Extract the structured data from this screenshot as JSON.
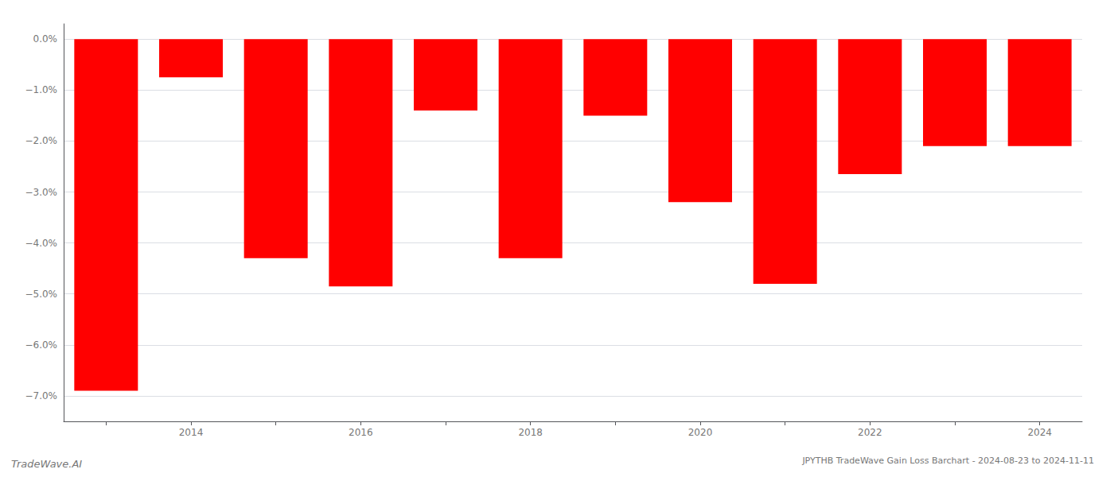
{
  "chart_data": {
    "type": "bar",
    "title": "JPYTHB TradeWave Gain Loss Barchart - 2024-08-23 to 2024-11-11",
    "annotations": [
      "TradeWave.AI"
    ],
    "categories": [
      null,
      "2014",
      null,
      "2016",
      null,
      "2018",
      null,
      "2020",
      null,
      "2022",
      null,
      "2024"
    ],
    "values": [
      -6.9,
      -0.75,
      -4.3,
      -4.85,
      -1.4,
      -4.3,
      -1.5,
      -3.2,
      -4.8,
      -2.65,
      -2.1,
      -2.1
    ],
    "color": "#ff0000",
    "ylim": [
      -7.5,
      0.3
    ],
    "yticks": [
      {
        "value": 0.0,
        "label": "0.0%"
      },
      {
        "value": -1.0,
        "label": "−1.0%"
      },
      {
        "value": -2.0,
        "label": "−2.0%"
      },
      {
        "value": -3.0,
        "label": "−3.0%"
      },
      {
        "value": -4.0,
        "label": "−4.0%"
      },
      {
        "value": -5.0,
        "label": "−5.0%"
      },
      {
        "value": -6.0,
        "label": "−6.0%"
      },
      {
        "value": -7.0,
        "label": "−7.0%"
      }
    ],
    "grid": true
  }
}
